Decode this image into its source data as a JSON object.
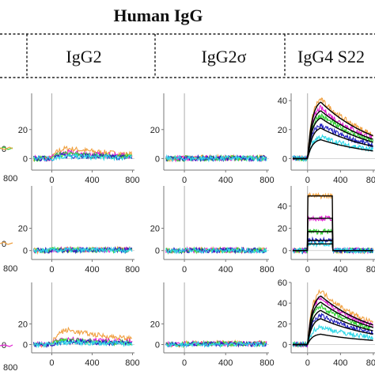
{
  "header": {
    "title": "Human IgG",
    "columns": [
      "IgG2",
      "IgG2σ",
      "IgG4 S22"
    ]
  },
  "colors": {
    "orange": "#f0a040",
    "magenta": "#e020d0",
    "green": "#30d030",
    "blue": "#2020c0",
    "cyan": "#30d8e8",
    "black": "#000000",
    "axis": "#777777",
    "injection_line": "#999999"
  },
  "chart_data": {
    "type": "line",
    "x_ticks": [
      "0",
      "400",
      "800"
    ],
    "xlim": [
      -200,
      820
    ],
    "series_order": [
      "orange",
      "magenta",
      "green",
      "blue",
      "cyan"
    ],
    "panels": [
      {
        "row": 0,
        "col": "IgG2",
        "ylim": [
          -8,
          45
        ],
        "y_ticks": [
          0,
          20
        ],
        "profile": "kinetic",
        "plateaus": [
          7,
          4,
          3,
          2,
          1.5
        ],
        "fits": []
      },
      {
        "row": 0,
        "col": "IgG2σ",
        "ylim": [
          -8,
          45
        ],
        "y_ticks": [
          0,
          20
        ],
        "profile": "flat",
        "plateaus": [
          0.5,
          0.3,
          0.2,
          0.2,
          0.1
        ],
        "fits": []
      },
      {
        "row": 0,
        "col": "IgG4 S22",
        "ylim": [
          -8,
          45
        ],
        "y_ticks": [
          0,
          20,
          40
        ],
        "profile": "kinetic",
        "plateaus": [
          41,
          35,
          30,
          23,
          15
        ],
        "fits": [
          39,
          33,
          28,
          21,
          13
        ]
      },
      {
        "row": 1,
        "col": "IgG2",
        "ylim": [
          -8,
          58
        ],
        "y_ticks": [
          0,
          20
        ],
        "profile": "flat",
        "plateaus": [
          1,
          0.8,
          0.6,
          0.5,
          0.4
        ],
        "fits": []
      },
      {
        "row": 1,
        "col": "IgG2σ",
        "ylim": [
          -8,
          58
        ],
        "y_ticks": [
          0,
          20
        ],
        "profile": "flat",
        "plateaus": [
          0.5,
          0.4,
          0.3,
          0.2,
          0.1
        ],
        "fits": []
      },
      {
        "row": 1,
        "col": "IgG4 S22",
        "ylim": [
          -8,
          58
        ],
        "y_ticks": [
          0,
          20,
          40
        ],
        "profile": "square",
        "plateaus": [
          49,
          29,
          17,
          9,
          6
        ],
        "fits": [
          49,
          29,
          17,
          9,
          6
        ]
      },
      {
        "row": 2,
        "col": "IgG2",
        "ylim": [
          -8,
          60
        ],
        "y_ticks": [
          0,
          20
        ],
        "profile": "kinetic",
        "plateaus": [
          14,
          6,
          4,
          3,
          2
        ],
        "fits": []
      },
      {
        "row": 2,
        "col": "IgG2σ",
        "ylim": [
          -8,
          60
        ],
        "y_ticks": [
          0,
          20
        ],
        "profile": "flat",
        "plateaus": [
          1.5,
          1,
          0.8,
          0.5,
          0.3
        ],
        "fits": []
      },
      {
        "row": 2,
        "col": "IgG4 S22",
        "ylim": [
          -8,
          60
        ],
        "y_ticks": [
          0,
          20,
          40,
          60
        ],
        "profile": "kinetic",
        "plateaus": [
          52,
          45,
          37,
          28,
          17
        ],
        "fits": [
          47,
          41,
          33,
          25,
          10
        ]
      }
    ]
  },
  "cropped_left_ticks": {
    "row0": {
      "y": "0",
      "x": "800"
    },
    "row1": {
      "y": "0",
      "x": "800"
    },
    "row2": {
      "y": "0",
      "x": "800"
    }
  }
}
